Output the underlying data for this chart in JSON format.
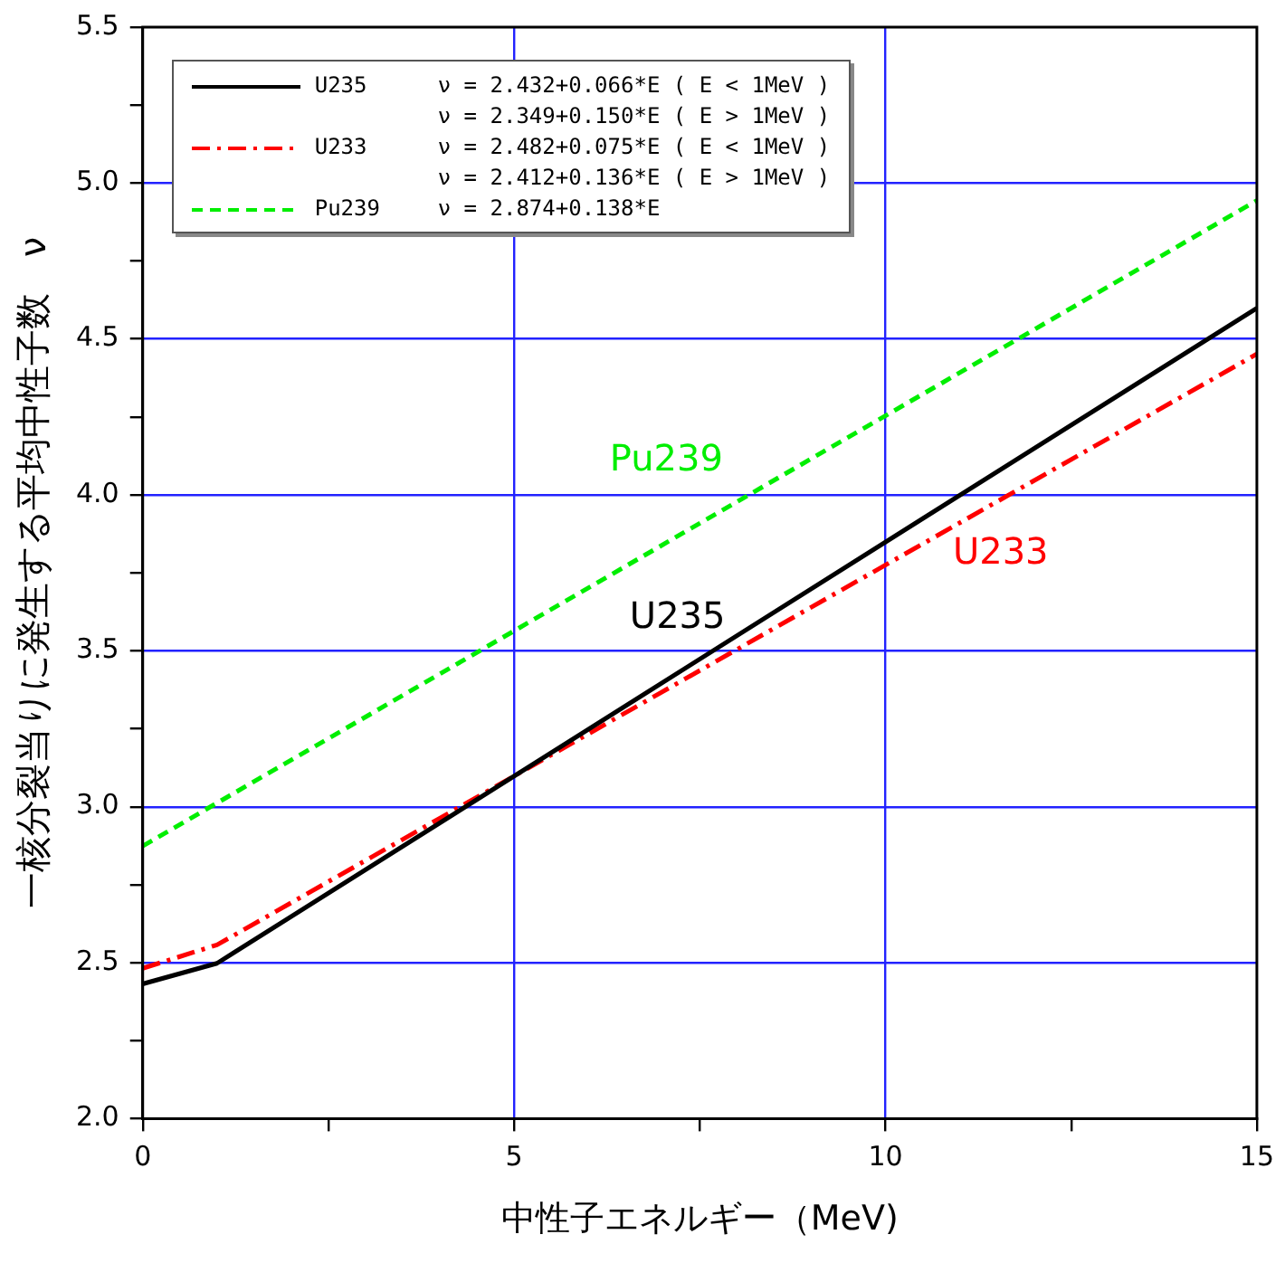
{
  "chart_data": {
    "type": "line",
    "xlabel": "中性子エネルギー（MeV)",
    "ylabel": "一核分裂当りに発生する平均中性子数　ν",
    "xlim": [
      0,
      15
    ],
    "xticks": [
      0,
      {
        "value": 2.5,
        "label": null
      },
      5,
      {
        "value": 7.5,
        "label": null
      },
      10,
      {
        "value": 12.5,
        "label": null
      },
      15
    ],
    "ylim": [
      2.0,
      5.5
    ],
    "yticks": [
      {
        "value": 2.0,
        "label": "2.0"
      },
      {
        "value": 2.25,
        "label": null
      },
      {
        "value": 2.5,
        "label": "2.5"
      },
      {
        "value": 2.75,
        "label": null
      },
      {
        "value": 3.0,
        "label": "3.0"
      },
      {
        "value": 3.25,
        "label": null
      },
      {
        "value": 3.5,
        "label": "3.5"
      },
      {
        "value": 3.75,
        "label": null
      },
      {
        "value": 4.0,
        "label": "4.0"
      },
      {
        "value": 4.25,
        "label": null
      },
      {
        "value": 4.5,
        "label": "4.5"
      },
      {
        "value": 4.75,
        "label": null
      },
      {
        "value": 5.0,
        "label": "5.0"
      },
      {
        "value": 5.25,
        "label": null
      },
      {
        "value": 5.5,
        "label": "5.5"
      }
    ],
    "grid": true,
    "legend": "top left",
    "marker": "none",
    "series": [
      {
        "name": "U235",
        "color": "#000000",
        "line_style": "solid",
        "x": [
          0,
          1,
          15
        ],
        "values": [
          2.432,
          2.498,
          4.599
        ]
      },
      {
        "name": "U233",
        "color": "#ff0000",
        "line_style": "dashdot",
        "x": [
          0,
          1,
          15
        ],
        "values": [
          2.482,
          2.557,
          4.452
        ]
      },
      {
        "name": "Pu239",
        "color": "#00ee00",
        "line_style": "dashed",
        "x": [
          0,
          15
        ],
        "values": [
          2.874,
          4.944
        ]
      }
    ],
    "annotations": [
      "ν = 2.432+0.066*E ( E < 1MeV )",
      "ν = 2.349+0.150*E ( E > 1MeV )",
      "ν = 2.482+0.075*E ( E < 1MeV )",
      "ν = 2.412+0.136*E ( E > 1MeV )",
      "ν = 2.874+0.138*E"
    ]
  }
}
